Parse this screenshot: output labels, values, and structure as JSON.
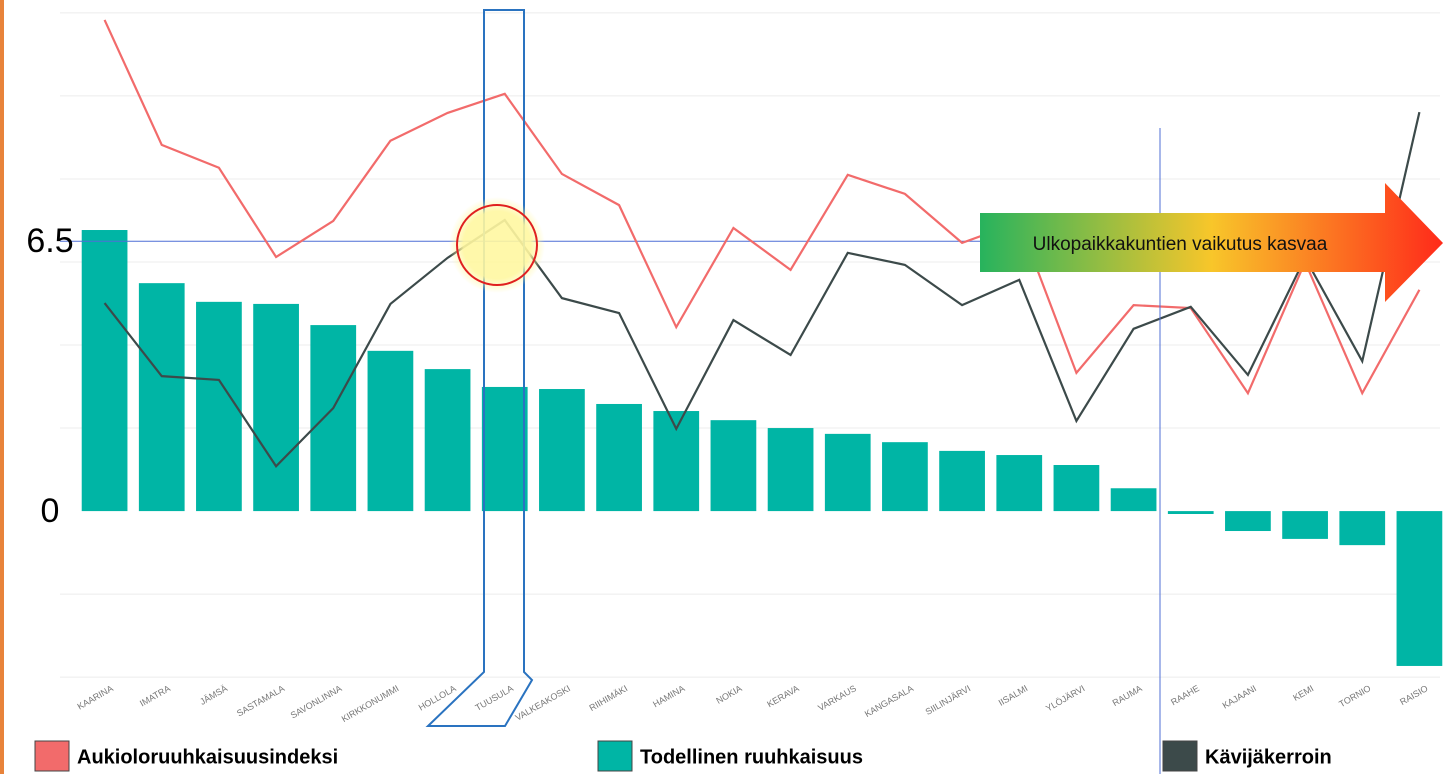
{
  "chart_data": {
    "type": "combo",
    "categories": [
      "KAARINA",
      "IMATRA",
      "JÄMSÄ",
      "SASTAMALA",
      "SAVONLINNA",
      "KIRKKONUMMI",
      "HOLLOLA",
      "TUUSULA",
      "VALKEAKOSKI",
      "RIIHIMÄKI",
      "HAMINA",
      "NOKIA",
      "KERAVA",
      "VARKAUS",
      "KANGASALA",
      "SIILINJÄRVI",
      "IISALMI",
      "YLÖJÄRVI",
      "RAUMA",
      "RAAHE",
      "KAJAANI",
      "KEMI",
      "TORNIO",
      "RAISIO"
    ],
    "series": [
      {
        "name": "Aukioloruuhkaisuusindeksi",
        "type": "line",
        "color": "#f26b6b",
        "values": [
          11.83,
          8.82,
          8.27,
          6.12,
          6.99,
          8.92,
          9.59,
          10.05,
          8.12,
          7.37,
          4.43,
          6.82,
          5.81,
          8.1,
          7.64,
          6.46,
          6.96,
          3.33,
          4.96,
          4.89,
          2.84,
          6.0,
          2.84,
          5.33
        ]
      },
      {
        "name": "Todellinen ruuhkaisuus",
        "type": "bar",
        "color": "#00b5a5",
        "values": [
          6.77,
          5.49,
          5.04,
          4.99,
          4.48,
          3.86,
          3.42,
          2.99,
          2.94,
          2.58,
          2.41,
          2.19,
          2.0,
          1.86,
          1.66,
          1.45,
          1.35,
          1.11,
          0.55,
          -0.07,
          -0.48,
          -0.67,
          -0.82,
          -3.73
        ]
      },
      {
        "name": "Kävijäkerroin",
        "type": "line",
        "color": "#3c4a4a",
        "values": [
          5.01,
          3.25,
          3.16,
          1.08,
          2.48,
          4.99,
          6.1,
          7.01,
          5.13,
          4.77,
          1.98,
          4.6,
          3.76,
          6.22,
          5.93,
          4.96,
          5.57,
          2.17,
          4.39,
          4.92,
          3.28,
          6.1,
          3.61,
          9.61
        ]
      }
    ],
    "ylim": [
      -4.55,
      12.31
    ],
    "yticks": [
      0,
      6.5
    ],
    "grid_lines": [
      -4,
      -2,
      2,
      4,
      6,
      8,
      10,
      12
    ],
    "annotation": "Ulkopaikkakuntien vaikutus kasvaa"
  }
}
